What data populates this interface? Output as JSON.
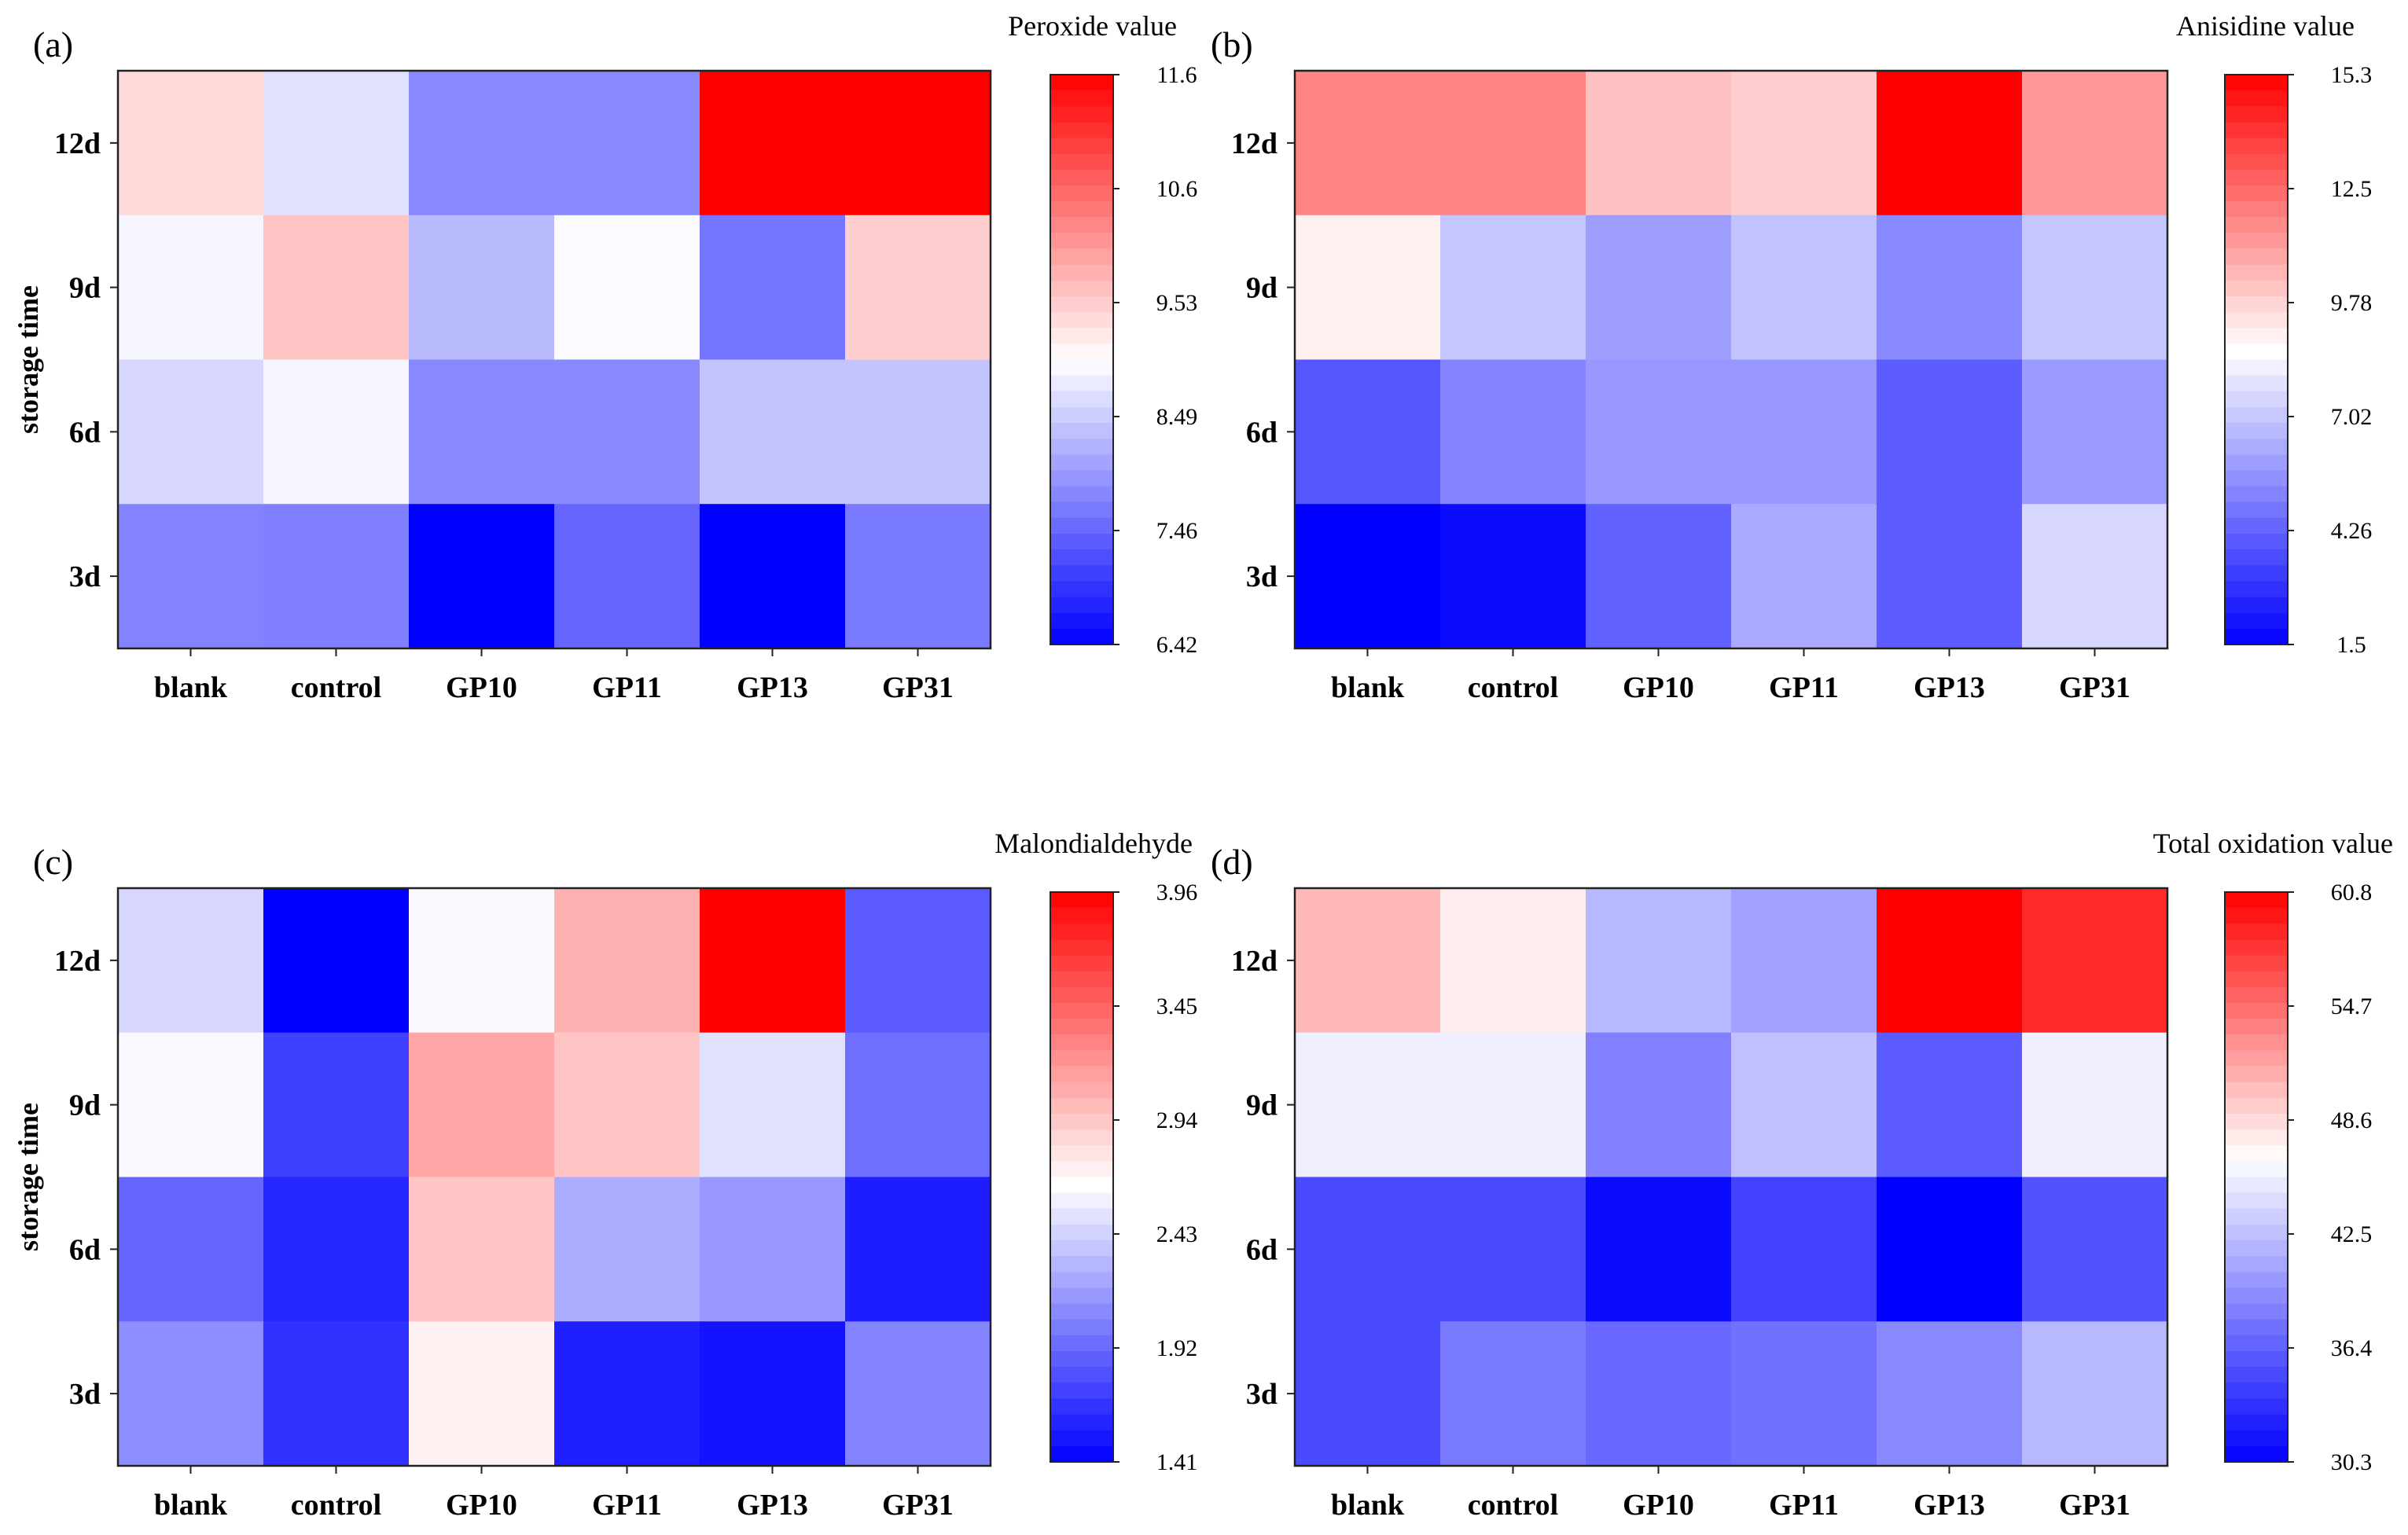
{
  "figure": {
    "colormap": {
      "low": "#0000ff",
      "mid": "#ffffff",
      "high": "#ff0000"
    }
  },
  "chart_data": [
    {
      "type": "heatmap",
      "panel": "(a)",
      "title": "Peroxide value",
      "xlabel": "",
      "ylabel": "storage time",
      "categories": [
        "blank",
        "control",
        "GP10",
        "GP11",
        "GP13",
        "GP31"
      ],
      "rows": [
        "12d",
        "9d",
        "6d",
        "3d"
      ],
      "values": [
        [
          9.4,
          8.7,
          7.8,
          7.8,
          11.6,
          11.6
        ],
        [
          8.9,
          9.6,
          8.3,
          8.95,
          7.6,
          9.5
        ],
        [
          8.6,
          8.9,
          7.8,
          7.8,
          8.4,
          8.4
        ],
        [
          7.75,
          7.7,
          6.42,
          7.45,
          6.42,
          7.65
        ]
      ],
      "vmin": 6.42,
      "vmax": 11.6,
      "vcenter": 9.0,
      "colorbar_ticks": [
        "11.6",
        "10.6",
        "9.53",
        "8.49",
        "7.46",
        "6.42"
      ]
    },
    {
      "type": "heatmap",
      "panel": "(b)",
      "title": "Anisidine value",
      "xlabel": "",
      "ylabel": "",
      "categories": [
        "blank",
        "control",
        "GP10",
        "GP11",
        "GP13",
        "GP31"
      ],
      "rows": [
        "12d",
        "9d",
        "6d",
        "3d"
      ],
      "values": [
        [
          11.8,
          11.8,
          10.2,
          9.9,
          15.3,
          11.3
        ],
        [
          9.0,
          7.0,
          5.9,
          6.9,
          5.3,
          7.0
        ],
        [
          3.9,
          5.2,
          5.7,
          5.7,
          4.1,
          5.8
        ],
        [
          1.5,
          1.8,
          4.2,
          6.2,
          4.1,
          7.5
        ]
      ],
      "vmin": 1.5,
      "vmax": 15.3,
      "vcenter": 8.6,
      "colorbar_ticks": [
        "15.3",
        "12.5",
        "9.78",
        "7.02",
        "4.26",
        "1.5"
      ]
    },
    {
      "type": "heatmap",
      "panel": "(c)",
      "title": "Malondialdehyde",
      "xlabel": "",
      "ylabel": "storage time",
      "categories": [
        "blank",
        "control",
        "GP10",
        "GP11",
        "GP13",
        "GP31"
      ],
      "rows": [
        "12d",
        "9d",
        "6d",
        "3d"
      ],
      "values": [
        [
          2.45,
          1.41,
          2.62,
          3.05,
          3.96,
          1.85
        ],
        [
          2.62,
          1.72,
          3.1,
          2.95,
          2.5,
          1.95
        ],
        [
          1.9,
          1.6,
          2.95,
          2.25,
          2.15,
          1.55
        ],
        [
          2.1,
          1.65,
          2.72,
          1.56,
          1.5,
          2.05
        ]
      ],
      "vmin": 1.41,
      "vmax": 3.96,
      "vcenter": 2.65,
      "colorbar_ticks": [
        "3.96",
        "3.45",
        "2.94",
        "2.43",
        "1.92",
        "1.41"
      ]
    },
    {
      "type": "heatmap",
      "panel": "(d)",
      "title": "Total oxidation value",
      "xlabel": "",
      "ylabel": "",
      "categories": [
        "blank",
        "control",
        "GP10",
        "GP11",
        "GP13",
        "GP31"
      ],
      "rows": [
        "12d",
        "9d",
        "6d",
        "3d"
      ],
      "values": [
        [
          50.5,
          47.5,
          42.0,
          40.5,
          60.8,
          58.5
        ],
        [
          45.5,
          45.5,
          38.5,
          42.5,
          36.0,
          45.5
        ],
        [
          35.0,
          35.0,
          31.0,
          34.5,
          30.3,
          35.5
        ],
        [
          35.0,
          38.0,
          37.0,
          37.5,
          39.0,
          42.0
        ]
      ],
      "vmin": 30.3,
      "vmax": 60.8,
      "vcenter": 46.5,
      "colorbar_ticks": [
        "60.8",
        "54.7",
        "48.6",
        "42.5",
        "36.4",
        "30.3"
      ]
    }
  ]
}
